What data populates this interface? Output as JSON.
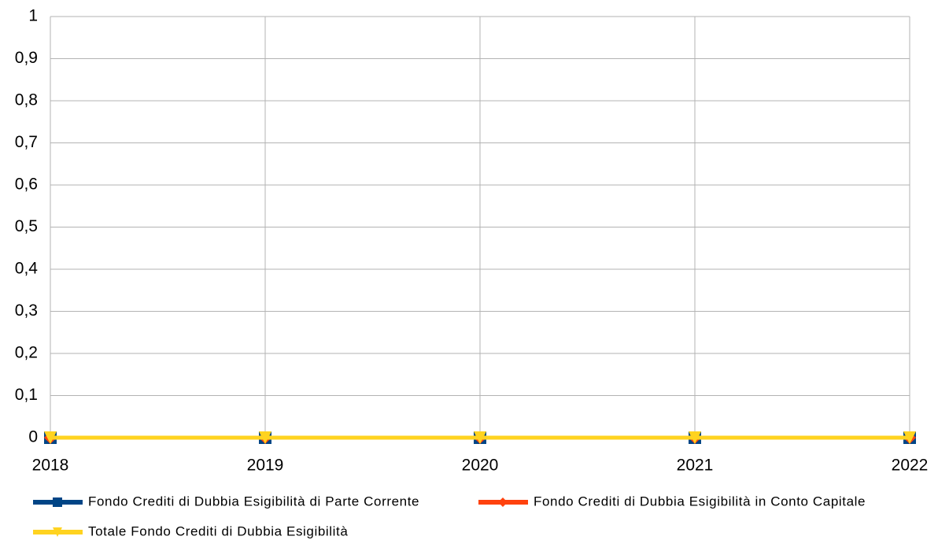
{
  "chart_data": {
    "type": "line",
    "x": [
      2018,
      2019,
      2020,
      2021,
      2022
    ],
    "xlim": [
      2018,
      2022
    ],
    "xticks": [
      2018,
      2019,
      2020,
      2021,
      2022
    ],
    "ylim": [
      0,
      1
    ],
    "yticks": [
      0,
      {
        "value": 0.1,
        "label": "0,1"
      },
      {
        "value": 0.2,
        "label": "0,2"
      },
      {
        "value": 0.3,
        "label": "0,3"
      },
      {
        "value": 0.4,
        "label": "0,4"
      },
      {
        "value": 0.5,
        "label": "0,5"
      },
      {
        "value": 0.6,
        "label": "0,6"
      },
      {
        "value": 0.7,
        "label": "0,7"
      },
      {
        "value": 0.8,
        "label": "0,8"
      },
      {
        "value": 0.9,
        "label": "0,9"
      },
      1
    ],
    "grid": true,
    "legend": "bottom",
    "series": [
      {
        "name": "Fondo Crediti di Dubbia Esigibilità di Parte Corrente",
        "color": "#004586",
        "marker": "square",
        "values": [
          0,
          0,
          0,
          0,
          0
        ]
      },
      {
        "name": "Fondo Crediti di Dubbia Esigibilità in Conto Capitale",
        "color": "#ff420e",
        "marker": "diamond",
        "values": [
          0,
          0,
          0,
          0,
          0
        ]
      },
      {
        "name": "Totale Fondo Crediti di Dubbia Esigibilità",
        "color": "#ffd320",
        "marker": "triangle-down",
        "values": [
          0,
          0,
          0,
          0,
          0
        ]
      }
    ]
  }
}
